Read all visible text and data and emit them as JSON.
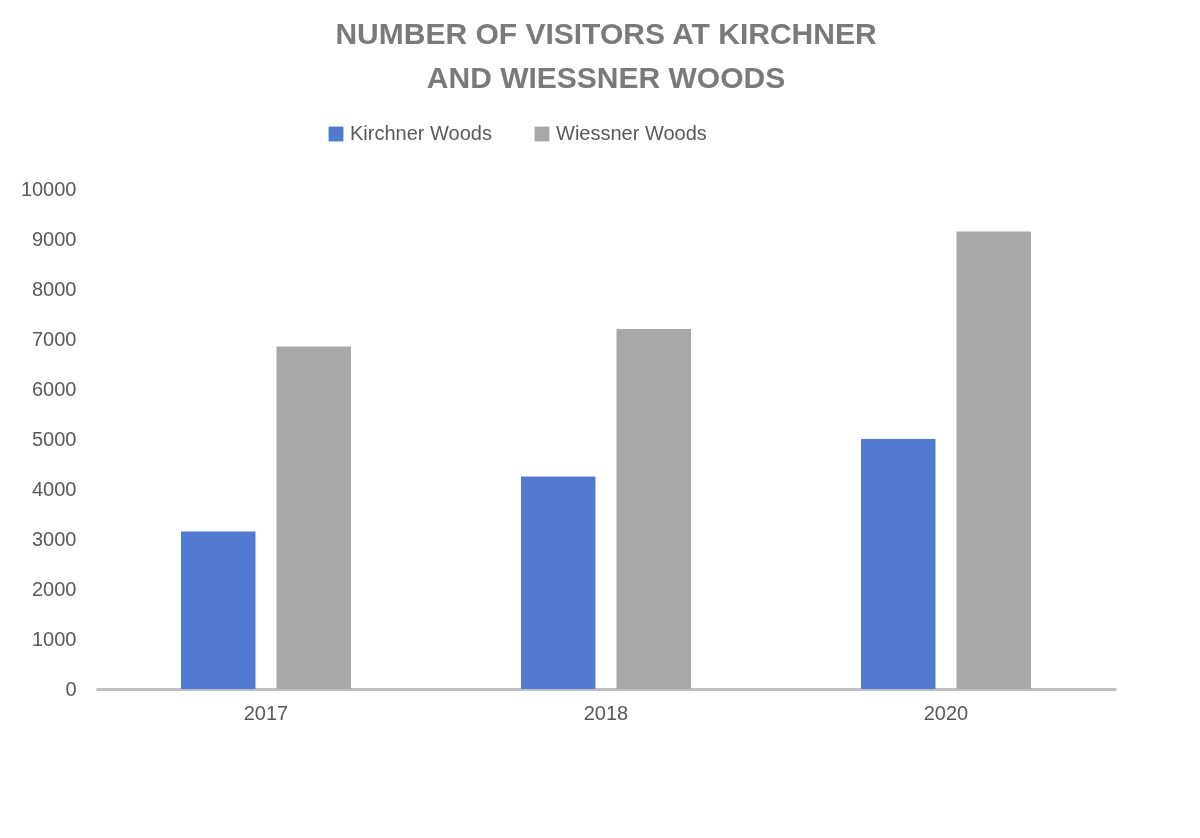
{
  "chart_data": {
    "type": "bar",
    "title": "NUMBER OF VISITORS AT KIRCHNER AND WIESSNER WOODS",
    "categories": [
      "2017",
      "2018",
      "2020"
    ],
    "series": [
      {
        "name": "Kirchner Woods",
        "color": "#4f7ad0",
        "values": [
          3150,
          4250,
          5000
        ]
      },
      {
        "name": "Wiessner Woods",
        "color": "#a8a8a8",
        "values": [
          6850,
          7200,
          9150
        ]
      }
    ],
    "ylim": [
      0,
      10000
    ],
    "yticks": [
      0,
      1000,
      2000,
      3000,
      4000,
      5000,
      6000,
      7000,
      8000,
      9000,
      10000
    ],
    "grid": false,
    "legend": "top"
  }
}
